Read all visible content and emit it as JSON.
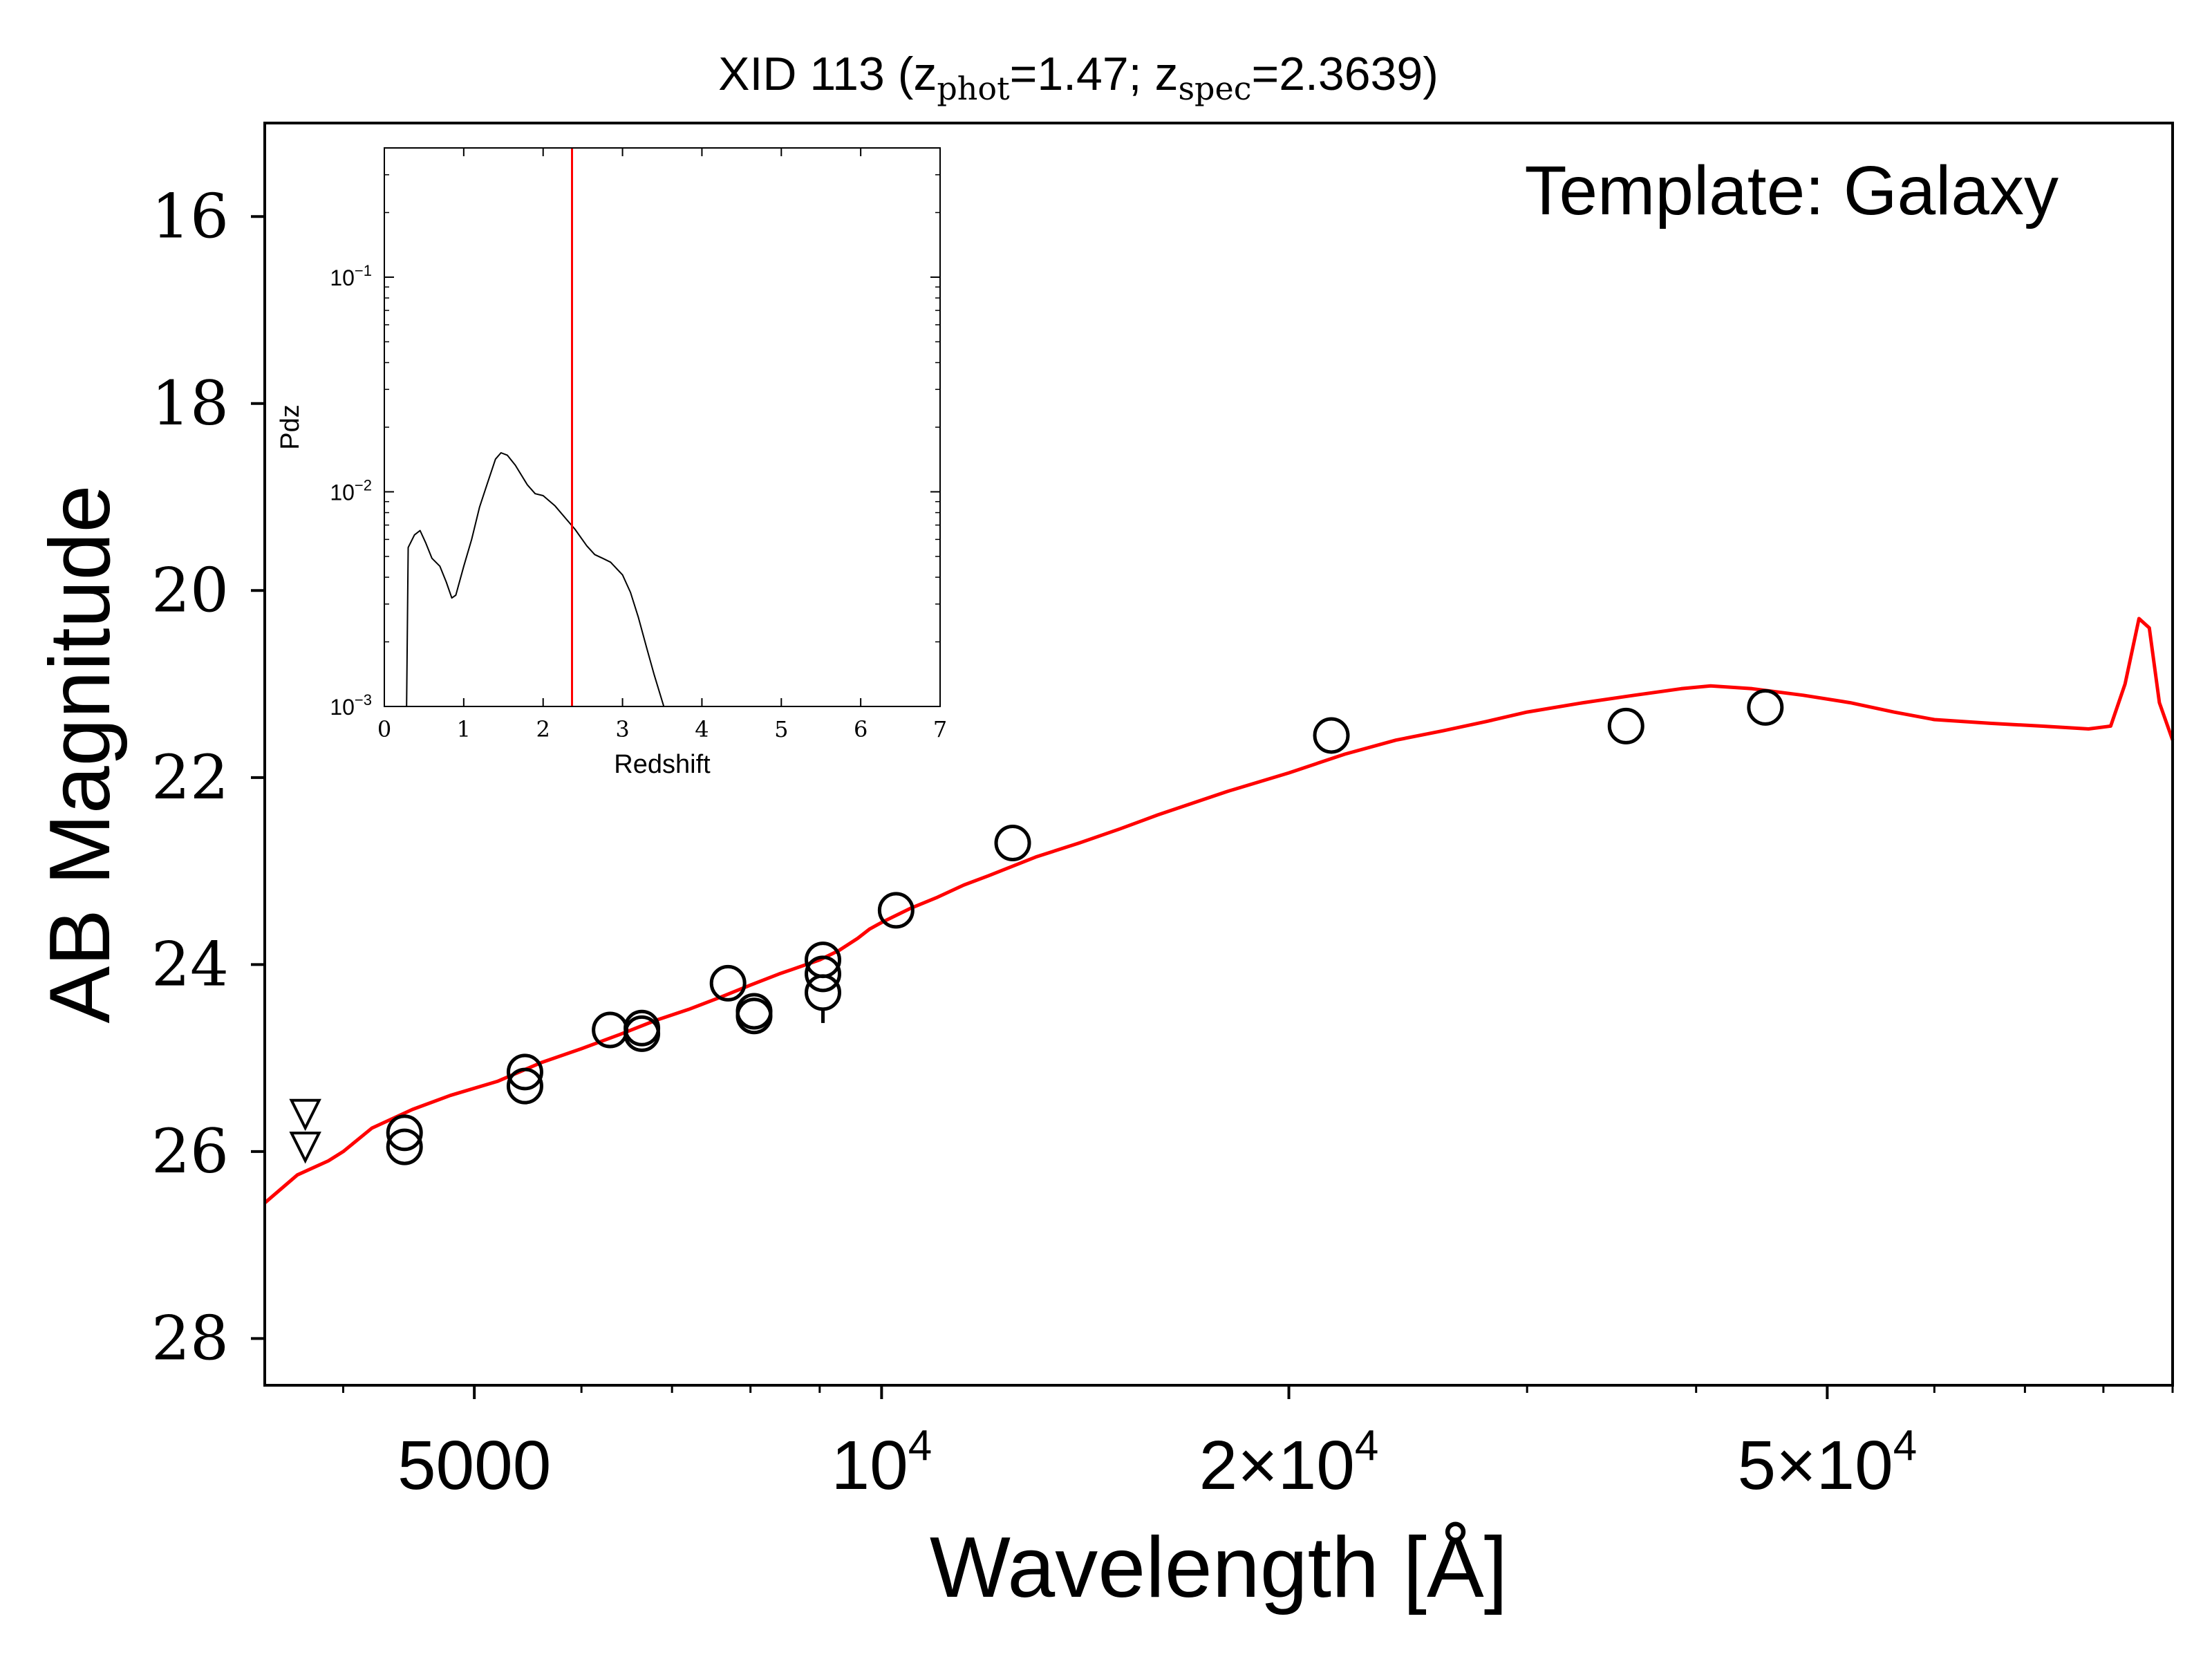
{
  "chart_data": [
    {
      "type": "line",
      "title": "XID 113 (z_phot=1.47; z_spec=2.3639)",
      "title_parts": {
        "prefix": "XID 113 (z",
        "phot_sub": "phot",
        "phot_val": "=1.47; z",
        "spec_sub": "spec",
        "spec_val": "=2.3639)"
      },
      "xlabel": "Wavelength [Å]",
      "ylabel": "AB Magnitude",
      "annotation": "Template: Galaxy",
      "xscale": "log",
      "xlim": [
        3500,
        90000
      ],
      "ylim": [
        28.5,
        15
      ],
      "y_inverted": true,
      "yticks": [
        16,
        18,
        20,
        22,
        24,
        26,
        28
      ],
      "xticks": [
        {
          "value": 5000,
          "base": "5000",
          "exp": ""
        },
        {
          "value": 10000,
          "base": "10",
          "exp": "4"
        },
        {
          "value": 20000,
          "base": "2×10",
          "exp": "4"
        },
        {
          "value": 50000,
          "base": "5×10",
          "exp": "4"
        }
      ],
      "series": [
        {
          "kind": "template",
          "color": "#ff0000",
          "points": [
            [
              3500,
              26.55
            ],
            [
              3700,
              26.25
            ],
            [
              3900,
              26.1
            ],
            [
              4000,
              26.0
            ],
            [
              4200,
              25.75
            ],
            [
              4500,
              25.55
            ],
            [
              4800,
              25.4
            ],
            [
              5200,
              25.25
            ],
            [
              5600,
              25.05
            ],
            [
              6000,
              24.9
            ],
            [
              6400,
              24.75
            ],
            [
              6800,
              24.6
            ],
            [
              7200,
              24.48
            ],
            [
              7600,
              24.35
            ],
            [
              8000,
              24.22
            ],
            [
              8400,
              24.1
            ],
            [
              8800,
              24.0
            ],
            [
              9000,
              23.95
            ],
            [
              9300,
              23.85
            ],
            [
              9600,
              23.72
            ],
            [
              9800,
              23.62
            ],
            [
              10000,
              23.55
            ],
            [
              10500,
              23.4
            ],
            [
              11000,
              23.28
            ],
            [
              11500,
              23.15
            ],
            [
              12000,
              23.05
            ],
            [
              13000,
              22.85
            ],
            [
              14000,
              22.7
            ],
            [
              15000,
              22.55
            ],
            [
              16000,
              22.4
            ],
            [
              18000,
              22.15
            ],
            [
              20000,
              21.95
            ],
            [
              22000,
              21.75
            ],
            [
              24000,
              21.6
            ],
            [
              26000,
              21.5
            ],
            [
              28000,
              21.4
            ],
            [
              30000,
              21.3
            ],
            [
              33000,
              21.2
            ],
            [
              36000,
              21.12
            ],
            [
              39000,
              21.05
            ],
            [
              41000,
              21.02
            ],
            [
              44000,
              21.05
            ],
            [
              48000,
              21.12
            ],
            [
              52000,
              21.2
            ],
            [
              56000,
              21.3
            ],
            [
              60000,
              21.38
            ],
            [
              66000,
              21.42
            ],
            [
              72000,
              21.45
            ],
            [
              78000,
              21.48
            ],
            [
              81000,
              21.45
            ],
            [
              83000,
              21.0
            ],
            [
              85000,
              20.3
            ],
            [
              86500,
              20.4
            ],
            [
              88000,
              21.2
            ],
            [
              90000,
              21.6
            ]
          ]
        },
        {
          "kind": "photometry",
          "marker": "circle-open",
          "points": [
            [
              4440,
              25.8
            ],
            [
              4440,
              25.95
            ],
            [
              5450,
              25.15
            ],
            [
              5450,
              25.3
            ],
            [
              6300,
              24.7
            ],
            [
              6650,
              24.68
            ],
            [
              6650,
              24.74
            ],
            [
              7700,
              24.2
            ],
            [
              8050,
              24.5
            ],
            [
              8050,
              24.55
            ],
            [
              9050,
              23.95
            ],
            [
              9050,
              24.1
            ],
            [
              9050,
              24.3
            ],
            [
              10250,
              23.42
            ],
            [
              12500,
              22.7
            ],
            [
              21500,
              21.55
            ],
            [
              35500,
              21.45
            ],
            [
              45000,
              21.25
            ]
          ]
        },
        {
          "kind": "upper_limit",
          "marker": "triangle-down-open",
          "points": [
            [
              3750,
              25.6
            ],
            [
              3750,
              25.95
            ]
          ]
        }
      ]
    },
    {
      "type": "line",
      "title": "",
      "xlabel": "Redshift",
      "ylabel": "Pdz",
      "yscale": "log",
      "xlim": [
        0,
        7
      ],
      "ylim": [
        0.001,
        0.4
      ],
      "xticks": [
        0,
        1,
        2,
        3,
        4,
        5,
        6,
        7
      ],
      "yticks": [
        {
          "value": 0.001,
          "base": "10",
          "exp": "−3"
        },
        {
          "value": 0.01,
          "base": "10",
          "exp": "−2"
        },
        {
          "value": 0.1,
          "base": "10",
          "exp": "−1"
        }
      ],
      "vline": {
        "x": 2.3639,
        "color": "#ff0000"
      },
      "series": [
        {
          "color": "#000000",
          "points": [
            [
              0.28,
              0.001
            ],
            [
              0.3,
              0.0055
            ],
            [
              0.38,
              0.0063
            ],
            [
              0.45,
              0.0066
            ],
            [
              0.52,
              0.0058
            ],
            [
              0.6,
              0.0049
            ],
            [
              0.7,
              0.0045
            ],
            [
              0.78,
              0.0038
            ],
            [
              0.85,
              0.0032
            ],
            [
              0.9,
              0.0033
            ],
            [
              1.0,
              0.0045
            ],
            [
              1.1,
              0.006
            ],
            [
              1.2,
              0.0085
            ],
            [
              1.3,
              0.011
            ],
            [
              1.4,
              0.0142
            ],
            [
              1.47,
              0.0152
            ],
            [
              1.55,
              0.0148
            ],
            [
              1.65,
              0.0133
            ],
            [
              1.8,
              0.0108
            ],
            [
              1.9,
              0.0098
            ],
            [
              2.0,
              0.0096
            ],
            [
              2.15,
              0.0086
            ],
            [
              2.3,
              0.0074
            ],
            [
              2.4,
              0.0067
            ],
            [
              2.55,
              0.0056
            ],
            [
              2.65,
              0.0051
            ],
            [
              2.75,
              0.0049
            ],
            [
              2.85,
              0.0047
            ],
            [
              3.0,
              0.0041
            ],
            [
              3.1,
              0.0034
            ],
            [
              3.2,
              0.0026
            ],
            [
              3.3,
              0.0019
            ],
            [
              3.4,
              0.0014
            ],
            [
              3.52,
              0.001
            ]
          ]
        }
      ]
    }
  ],
  "colors": {
    "template": "#ff0000",
    "axes": "#000000",
    "background": "#ffffff"
  }
}
